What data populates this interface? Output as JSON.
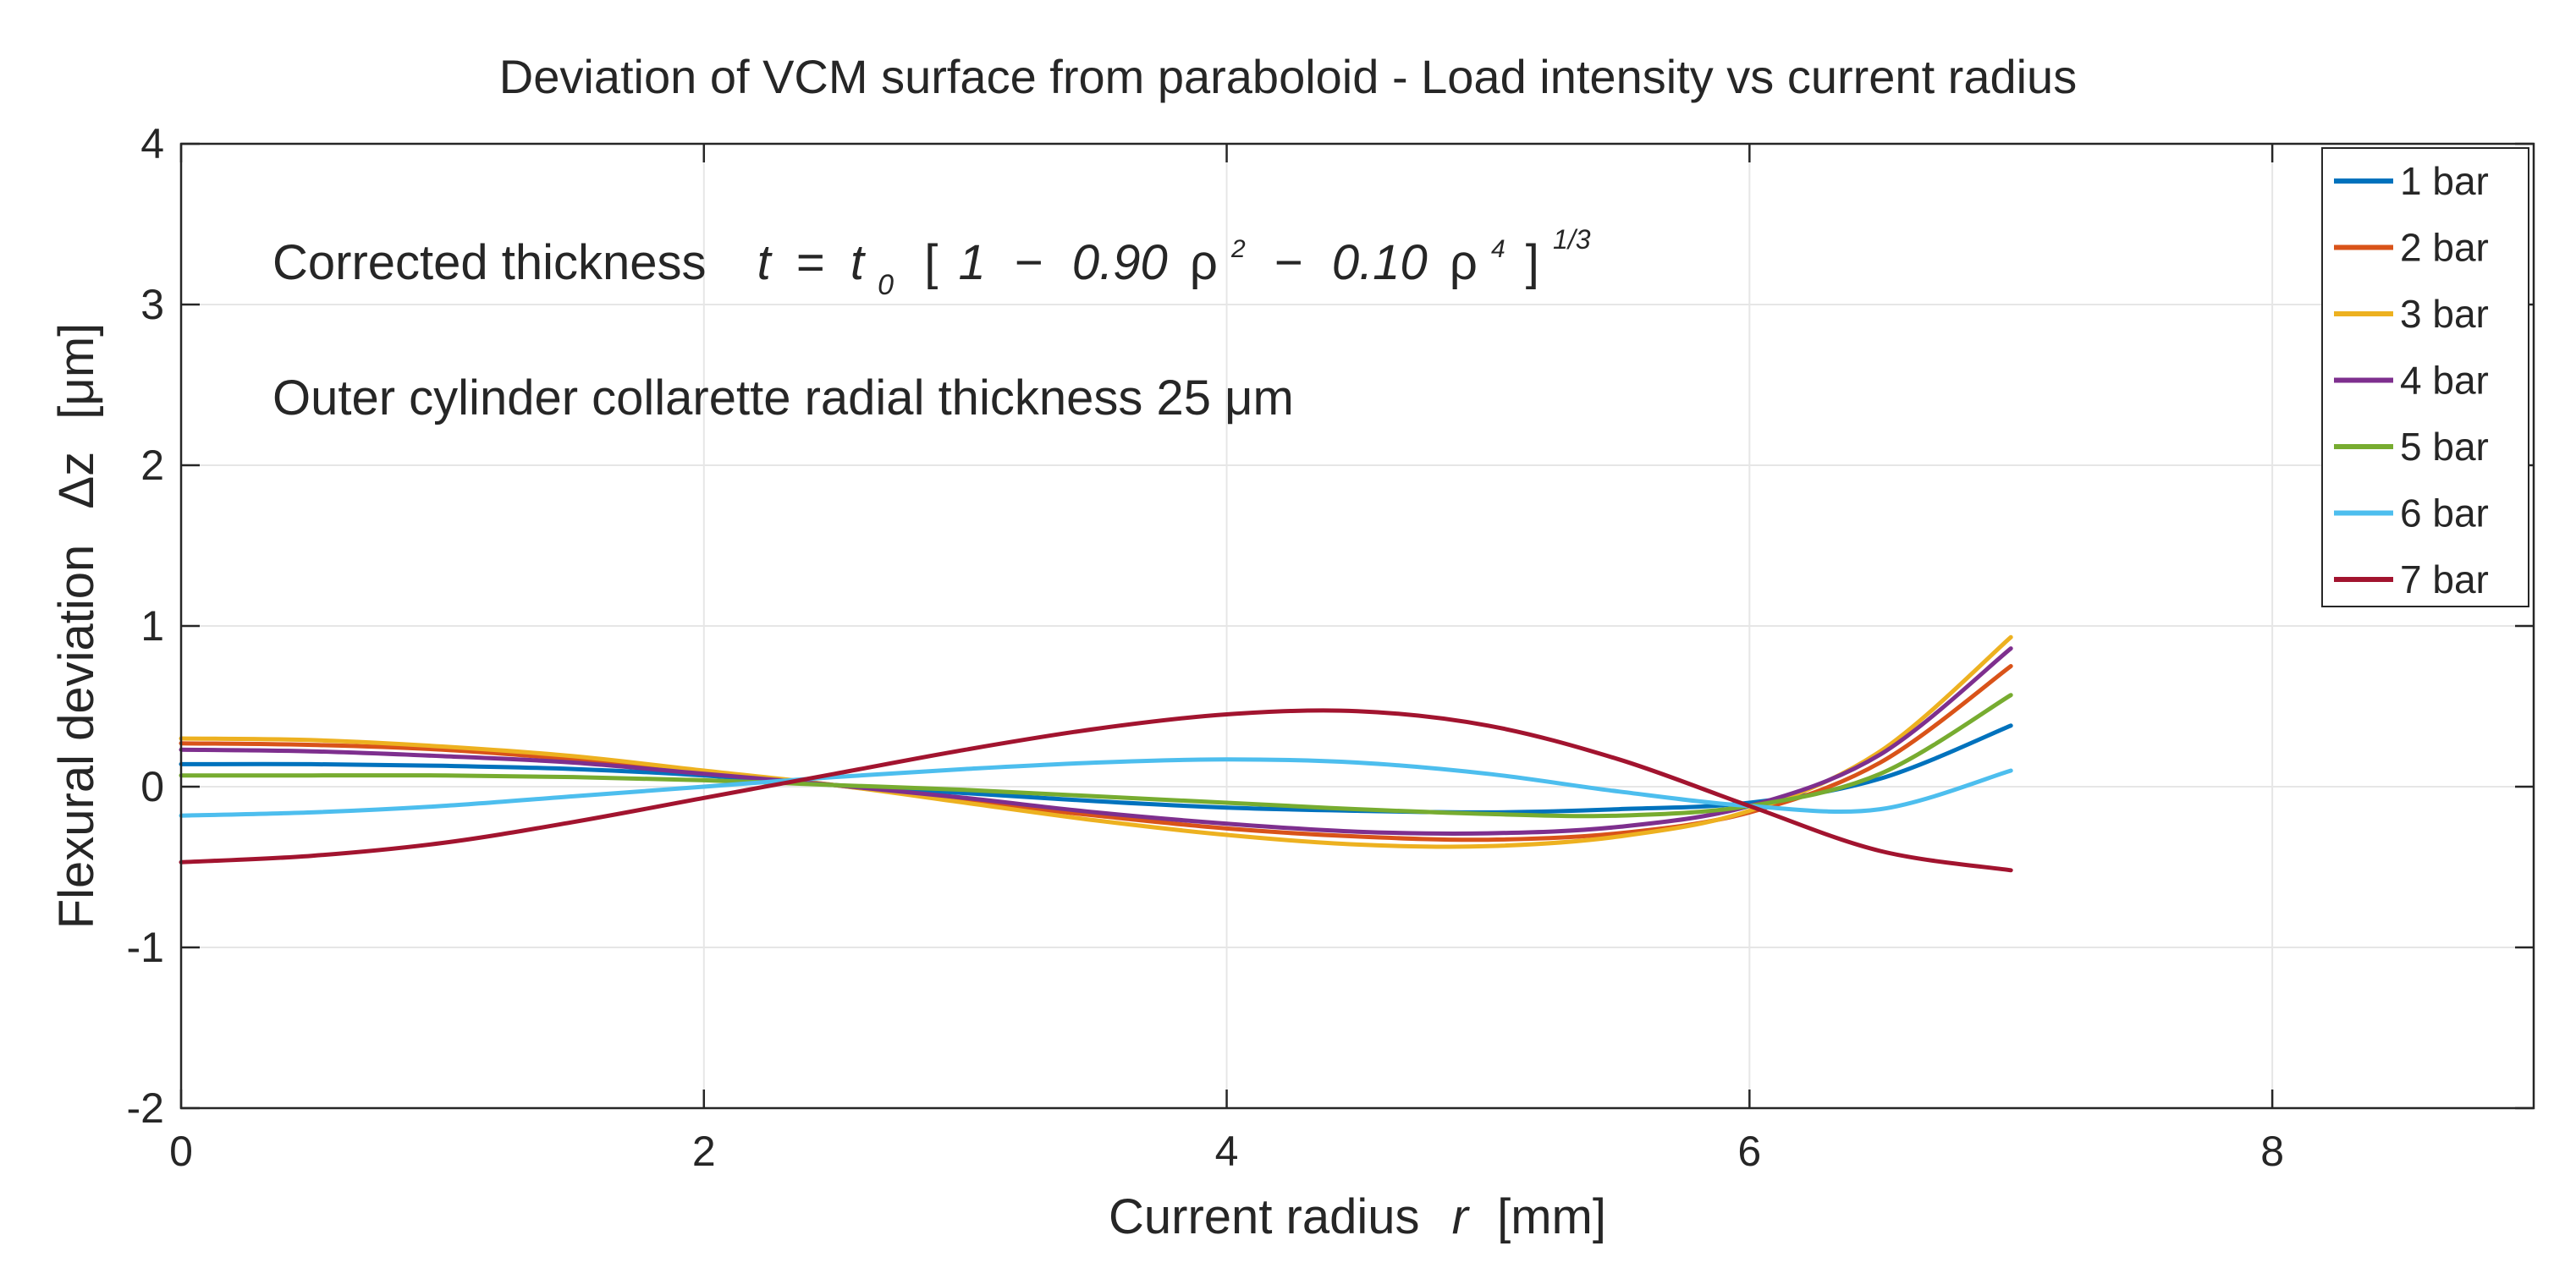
{
  "chart_data": {
    "type": "line",
    "title": "Deviation of VCM surface from paraboloid  -  Load intensity vs current radius",
    "xlabel_prefix": "Current radius",
    "xlabel_var": "r",
    "xlabel_unit": "[mm]",
    "ylabel_prefix": "Flexural deviation",
    "ylabel_var": "Δz",
    "ylabel_unit": "[μm]",
    "xlim": [
      0,
      9
    ],
    "ylim": [
      -2,
      4
    ],
    "xticks": [
      "0",
      "2",
      "4",
      "6",
      "8"
    ],
    "yticks": [
      "-2",
      "-1",
      "0",
      "1",
      "2",
      "3",
      "4"
    ],
    "grid": true,
    "legend_position": "top-right",
    "annotations": {
      "corrected_label": "Corrected thickness",
      "formula": {
        "t": "t",
        "eq": "=",
        "t0": "t",
        "t0_sub": "0",
        "open": "[",
        "one": "1",
        "minus": "−",
        "c1": "0.90",
        "rho": "ρ",
        "pow2": "2",
        "c2": "0.10",
        "pow4": "4",
        "close": "]",
        "exp": "1/3"
      },
      "collarette": "Outer cylinder collarette radial thickness  25 μm"
    },
    "x": [
      0,
      0.5,
      1,
      1.5,
      2,
      2.5,
      3,
      3.5,
      4,
      4.5,
      5,
      5.5,
      6,
      6.5,
      7
    ],
    "series": [
      {
        "name": "1 bar",
        "color": "#0072BD",
        "values": [
          0.14,
          0.14,
          0.13,
          0.11,
          0.07,
          0.01,
          -0.04,
          -0.09,
          -0.13,
          -0.15,
          -0.16,
          -0.14,
          -0.1,
          0.05,
          0.38
        ]
      },
      {
        "name": "2 bar",
        "color": "#D95319",
        "values": [
          0.27,
          0.26,
          0.23,
          0.17,
          0.09,
          0.01,
          -0.09,
          -0.18,
          -0.26,
          -0.31,
          -0.33,
          -0.29,
          -0.16,
          0.15,
          0.75
        ]
      },
      {
        "name": "3 bar",
        "color": "#EDB120",
        "values": [
          0.3,
          0.29,
          0.25,
          0.19,
          0.1,
          0.01,
          -0.1,
          -0.21,
          -0.3,
          -0.36,
          -0.37,
          -0.31,
          -0.15,
          0.22,
          0.93
        ]
      },
      {
        "name": "4 bar",
        "color": "#7E2F8E",
        "values": [
          0.23,
          0.22,
          0.19,
          0.15,
          0.08,
          0.01,
          -0.07,
          -0.16,
          -0.23,
          -0.28,
          -0.29,
          -0.25,
          -0.12,
          0.2,
          0.86
        ]
      },
      {
        "name": "5 bar",
        "color": "#77AC30",
        "values": [
          0.07,
          0.07,
          0.07,
          0.06,
          0.04,
          0.01,
          -0.02,
          -0.06,
          -0.1,
          -0.14,
          -0.17,
          -0.18,
          -0.12,
          0.08,
          0.57
        ]
      },
      {
        "name": "6 bar",
        "color": "#4DBEEE",
        "values": [
          -0.18,
          -0.16,
          -0.12,
          -0.06,
          0.0,
          0.06,
          0.11,
          0.15,
          0.17,
          0.15,
          0.08,
          -0.03,
          -0.12,
          -0.14,
          0.1
        ]
      },
      {
        "name": "7 bar",
        "color": "#A2142F",
        "values": [
          -0.47,
          -0.43,
          -0.35,
          -0.22,
          -0.07,
          0.08,
          0.23,
          0.36,
          0.45,
          0.47,
          0.38,
          0.17,
          -0.12,
          -0.4,
          -0.52
        ]
      }
    ]
  }
}
